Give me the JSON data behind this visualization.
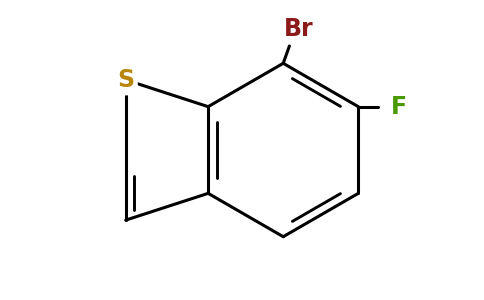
{
  "background_color": "#ffffff",
  "bond_color": "#000000",
  "bond_width": 2.2,
  "S_color": "#b8860b",
  "Br_color": "#8b1a1a",
  "F_color": "#4a9900",
  "S_label": "S",
  "Br_label": "Br",
  "F_label": "F",
  "font_size": 17,
  "figsize": [
    4.84,
    3.0
  ],
  "dpi": 100
}
